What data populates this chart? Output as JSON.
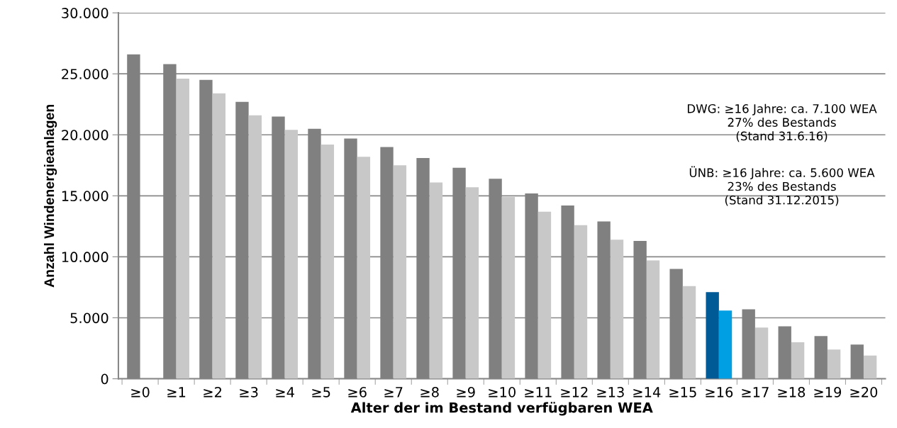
{
  "chart_data": {
    "type": "bar",
    "xlabel": "Alter der im Bestand verfügbaren WEA",
    "ylabel": "Anzahl Windenergieanlagen",
    "categories": [
      "≥0",
      "≥1",
      "≥2",
      "≥3",
      "≥4",
      "≥5",
      "≥6",
      "≥7",
      "≥8",
      "≥9",
      "≥10",
      "≥11",
      "≥12",
      "≥13",
      "≥14",
      "≥15",
      "≥16",
      "≥17",
      "≥18",
      "≥19",
      "≥20"
    ],
    "series": [
      {
        "colors": [
          "#808080",
          "#808080",
          "#808080",
          "#808080",
          "#808080",
          "#808080",
          "#808080",
          "#808080",
          "#808080",
          "#808080",
          "#808080",
          "#808080",
          "#808080",
          "#808080",
          "#808080",
          "#808080",
          "#005a96",
          "#808080",
          "#808080",
          "#808080",
          "#808080"
        ],
        "values": [
          26600,
          25800,
          24500,
          22700,
          21500,
          20500,
          19700,
          19000,
          18100,
          17300,
          16400,
          15200,
          14200,
          12900,
          11300,
          9000,
          7100,
          5700,
          4300,
          3500,
          2800
        ]
      },
      {
        "colors": [
          "#c8c8c8",
          "#c8c8c8",
          "#c8c8c8",
          "#c8c8c8",
          "#c8c8c8",
          "#c8c8c8",
          "#c8c8c8",
          "#c8c8c8",
          "#c8c8c8",
          "#c8c8c8",
          "#c8c8c8",
          "#c8c8c8",
          "#c8c8c8",
          "#c8c8c8",
          "#c8c8c8",
          "#c8c8c8",
          "#009fe3",
          "#c8c8c8",
          "#c8c8c8",
          "#c8c8c8",
          "#c8c8c8"
        ],
        "values": [
          null,
          24600,
          23400,
          21600,
          20400,
          19200,
          18200,
          17500,
          16100,
          15700,
          14900,
          13700,
          12600,
          11400,
          9700,
          7600,
          5600,
          4200,
          3000,
          2400,
          1900
        ]
      }
    ],
    "ylim": [
      0,
      30000
    ],
    "yticks": [
      {
        "value": 0,
        "label": "0"
      },
      {
        "value": 5000,
        "label": "5.000"
      },
      {
        "value": 10000,
        "label": "10.000"
      },
      {
        "value": 15000,
        "label": "15.000"
      },
      {
        "value": 20000,
        "label": "20.000"
      },
      {
        "value": 25000,
        "label": "25.000"
      },
      {
        "value": 30000,
        "label": "30.000"
      }
    ],
    "grid": "y",
    "annotations": [
      "DWG: ≥16 Jahre: ca. 7.100 WEA\n27% des Bestands\n(Stand 31.6.16)",
      "ÜNB: ≥16 Jahre: ca. 5.600 WEA\n23% des Bestands\n(Stand 31.12.2015)"
    ]
  }
}
